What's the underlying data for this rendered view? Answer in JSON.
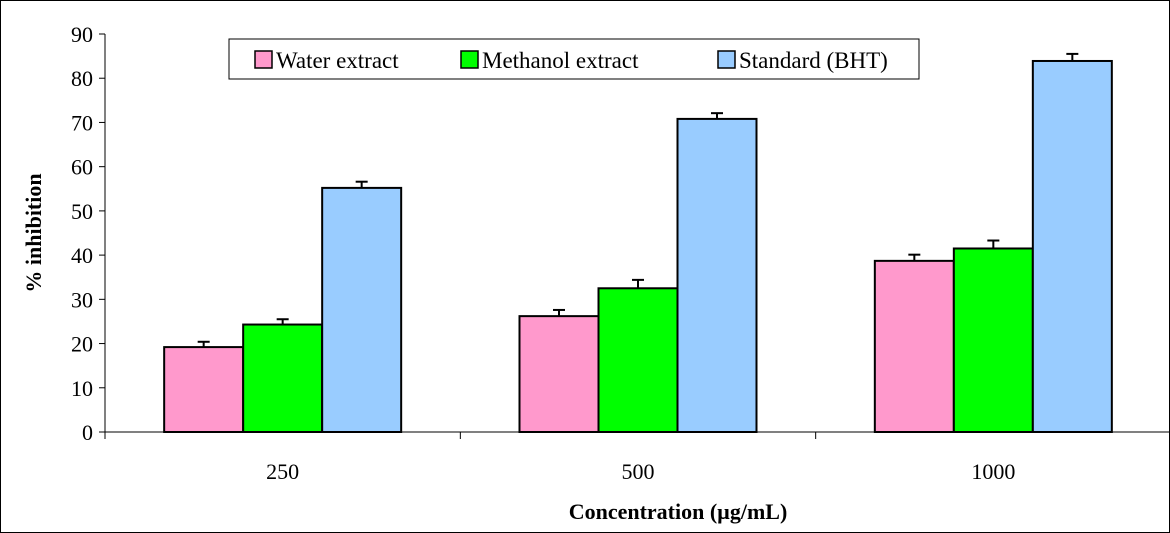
{
  "chart_data": {
    "type": "bar",
    "title": "",
    "xlabel": "Concentration (µg/mL)",
    "ylabel": "% inhibition",
    "categories": [
      "250",
      "500",
      "1000"
    ],
    "ylim": [
      0,
      90
    ],
    "yticks": [
      0,
      10,
      20,
      30,
      40,
      50,
      60,
      70,
      80,
      90
    ],
    "grid": false,
    "legend_position": "top-center",
    "series": [
      {
        "name": "Water extract",
        "color": "#ff99cc",
        "values": [
          19.2,
          26.2,
          38.7
        ],
        "errors": [
          1.2,
          1.4,
          1.4
        ]
      },
      {
        "name": "Methanol extract",
        "color": "#00ff00",
        "values": [
          24.3,
          32.5,
          41.5
        ],
        "errors": [
          1.2,
          1.9,
          1.8
        ]
      },
      {
        "name": "Standard (BHT)",
        "color": "#99ccff",
        "values": [
          55.2,
          70.8,
          83.9
        ],
        "errors": [
          1.4,
          1.3,
          1.6
        ]
      }
    ]
  }
}
